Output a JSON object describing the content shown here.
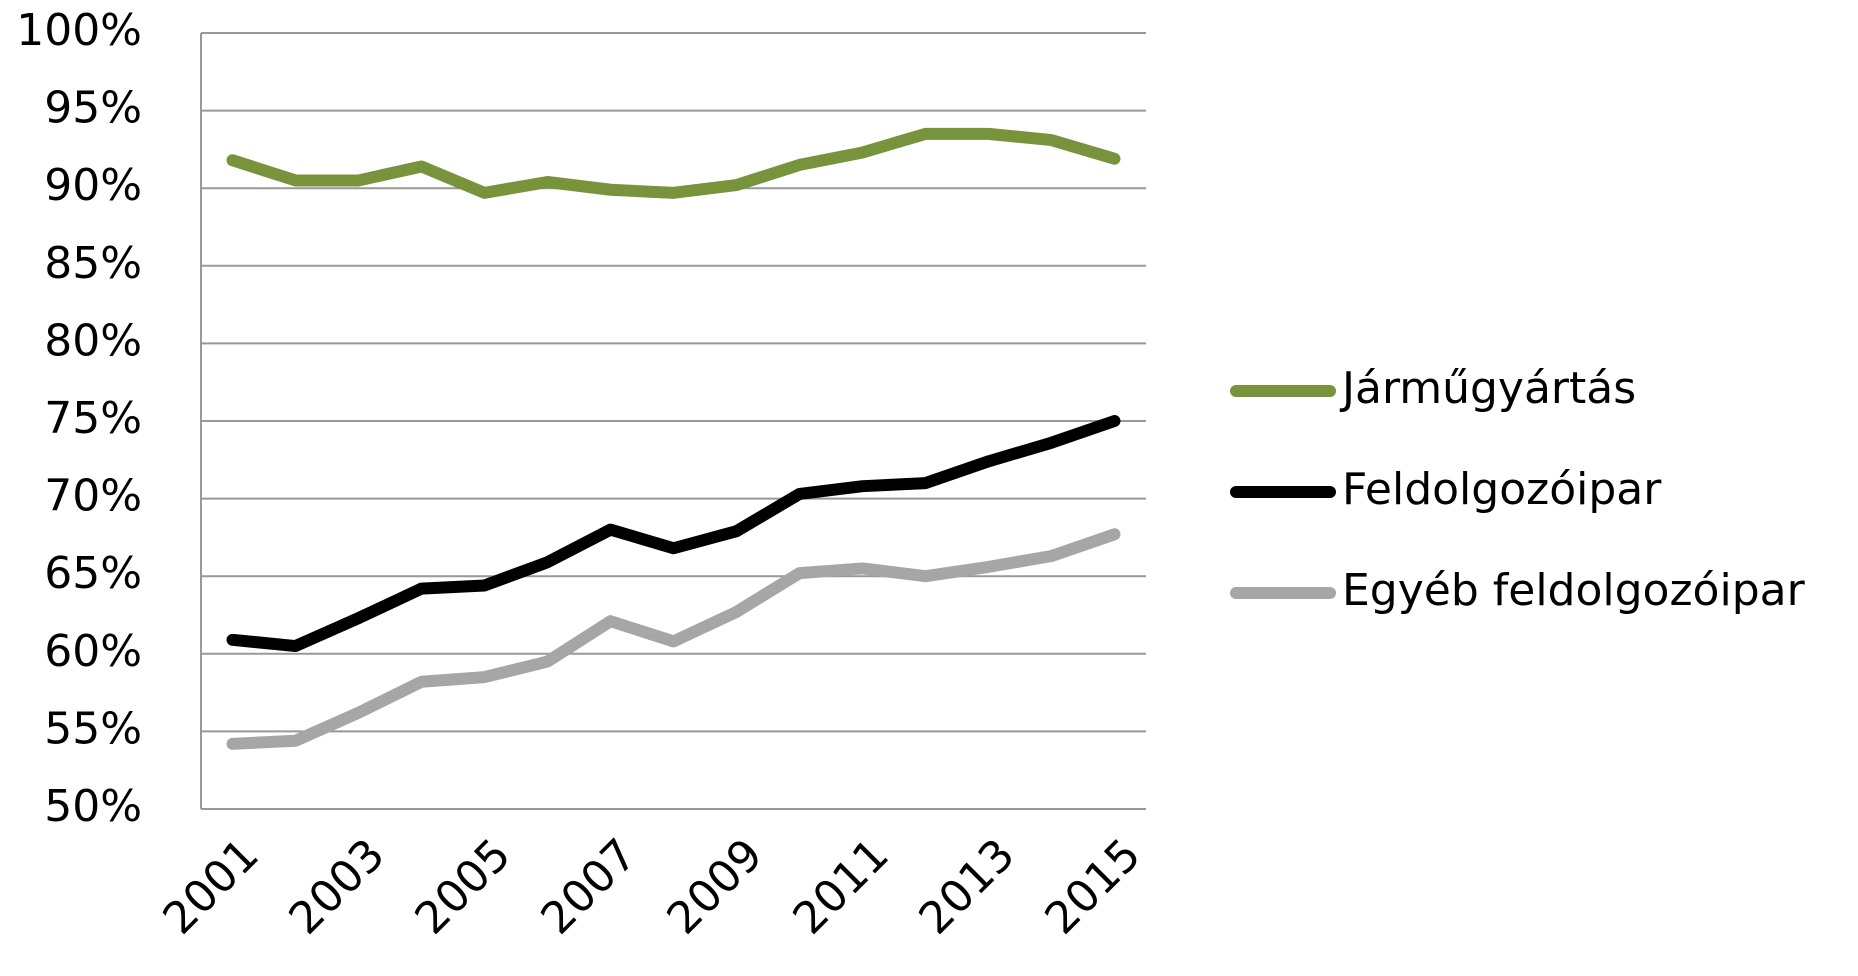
{
  "chart_data": {
    "type": "line",
    "categories": [
      "2001",
      null,
      "2003",
      null,
      "2005",
      null,
      "2007",
      null,
      "2009",
      null,
      "2011",
      null,
      "2013",
      null,
      "2015"
    ],
    "series": [
      {
        "name": "Járműgyártás",
        "color": "#77933c",
        "values": [
          91.8,
          90.5,
          90.5,
          91.4,
          89.7,
          90.4,
          89.9,
          89.7,
          90.2,
          91.5,
          92.3,
          93.5,
          93.5,
          93.1,
          91.9
        ]
      },
      {
        "name": "Feldolgozóipar",
        "color": "#000000",
        "values": [
          60.9,
          60.5,
          62.3,
          64.2,
          64.4,
          65.9,
          68.0,
          66.8,
          67.9,
          70.3,
          70.8,
          71.0,
          72.4,
          73.6,
          75.0
        ]
      },
      {
        "name": "Egyéb feldolgozóipar",
        "color": "#a6a6a6",
        "values": [
          54.2,
          54.4,
          56.2,
          58.2,
          58.5,
          59.5,
          62.1,
          60.8,
          62.7,
          65.2,
          65.5,
          65.0,
          65.6,
          66.3,
          67.7
        ]
      }
    ],
    "ylim": [
      50,
      100
    ],
    "yticks": [
      {
        "value": 50,
        "label": "50%"
      },
      {
        "value": 55,
        "label": "55%"
      },
      {
        "value": 60,
        "label": "60%"
      },
      {
        "value": 65,
        "label": "65%"
      },
      {
        "value": 70,
        "label": "70%"
      },
      {
        "value": 75,
        "label": "75%"
      },
      {
        "value": 80,
        "label": "80%"
      },
      {
        "value": 85,
        "label": "85%"
      },
      {
        "value": 90,
        "label": "90%"
      },
      {
        "value": 95,
        "label": "95%"
      },
      {
        "value": 100,
        "label": "100%"
      }
    ],
    "grid": true,
    "legend": "right"
  }
}
